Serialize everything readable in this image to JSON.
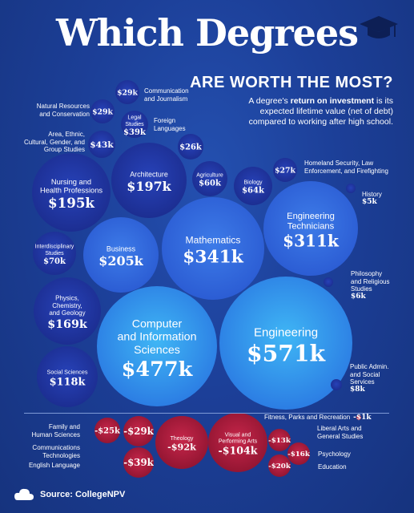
{
  "header": {
    "title": "Which Degrees",
    "subtitle": "ARE WORTH THE MOST?",
    "desc_pre": "A degree's ",
    "desc_bold": "return on investment",
    "desc_post": " is its expected lifetime value (net of debt) compared to working after high school."
  },
  "footer": {
    "source": "Source: CollegeNPV"
  },
  "colors": {
    "background": "#1c3f98",
    "positive": "#2a5ed8",
    "highlight": "#38a6f0",
    "negative": "#b01c3c"
  },
  "icons": {
    "cap": "graduation-cap-icon",
    "logo": "cloud-logo-icon"
  },
  "chart_data": {
    "type": "bubble",
    "title": "Which Degrees",
    "subtitle": "ARE WORTH THE MOST?",
    "unit": "thousand USD",
    "series": [
      {
        "label": "Engineering",
        "value": 571,
        "display": "$571k"
      },
      {
        "label": "Computer and Information Sciences",
        "value": 477,
        "display": "$477k"
      },
      {
        "label": "Mathematics",
        "value": 341,
        "display": "$341k"
      },
      {
        "label": "Engineering Technicians",
        "value": 311,
        "display": "$311k"
      },
      {
        "label": "Business",
        "value": 205,
        "display": "$205k"
      },
      {
        "label": "Architecture",
        "value": 197,
        "display": "$197k"
      },
      {
        "label": "Nursing and Health Professions",
        "value": 195,
        "display": "$195k"
      },
      {
        "label": "Physics, Chemistry, and Geology",
        "value": 169,
        "display": "$169k"
      },
      {
        "label": "Social Sciences",
        "value": 118,
        "display": "$118k"
      },
      {
        "label": "Interdisciplinary Studies",
        "value": 70,
        "display": "$70k"
      },
      {
        "label": "Biology",
        "value": 64,
        "display": "$64k"
      },
      {
        "label": "Agriculture",
        "value": 60,
        "display": "$60k"
      },
      {
        "label": "Area, Ethnic, Cultural, Gender, and Group Studies",
        "value": 43,
        "display": "$43k"
      },
      {
        "label": "Legal Studies",
        "value": 39,
        "display": "$39k"
      },
      {
        "label": "Communication and Journalism",
        "value": 29,
        "display": "$29k"
      },
      {
        "label": "Natural Resources and Conservation",
        "value": 29,
        "display": "$29k"
      },
      {
        "label": "Homeland Security, Law Enforcement, and Firefighting",
        "value": 27,
        "display": "$27k"
      },
      {
        "label": "Foreign Languages",
        "value": 26,
        "display": "$26k"
      },
      {
        "label": "Public Admin. and Social Services",
        "value": 8,
        "display": "$8k"
      },
      {
        "label": "Philosophy and Religious Studies",
        "value": 6,
        "display": "$6k"
      },
      {
        "label": "History",
        "value": 5,
        "display": "$5k"
      },
      {
        "label": "Fitness, Parks and Recreation",
        "value": -1,
        "display": "-$1k"
      },
      {
        "label": "Liberal Arts and General Studies",
        "value": -13,
        "display": "-$13k"
      },
      {
        "label": "Psychology",
        "value": -16,
        "display": "-$16k"
      },
      {
        "label": "Education",
        "value": -20,
        "display": "-$20k"
      },
      {
        "label": "Family and Human Sciences",
        "value": -25,
        "display": "-$25k"
      },
      {
        "label": "Communications Technologies",
        "value": -29,
        "display": "-$29k"
      },
      {
        "label": "English Language",
        "value": -39,
        "display": "-$39k"
      },
      {
        "label": "Theology",
        "value": -92,
        "display": "-$92k"
      },
      {
        "label": "Visual and Performing Arts",
        "value": -104,
        "display": "-$104k"
      }
    ]
  }
}
